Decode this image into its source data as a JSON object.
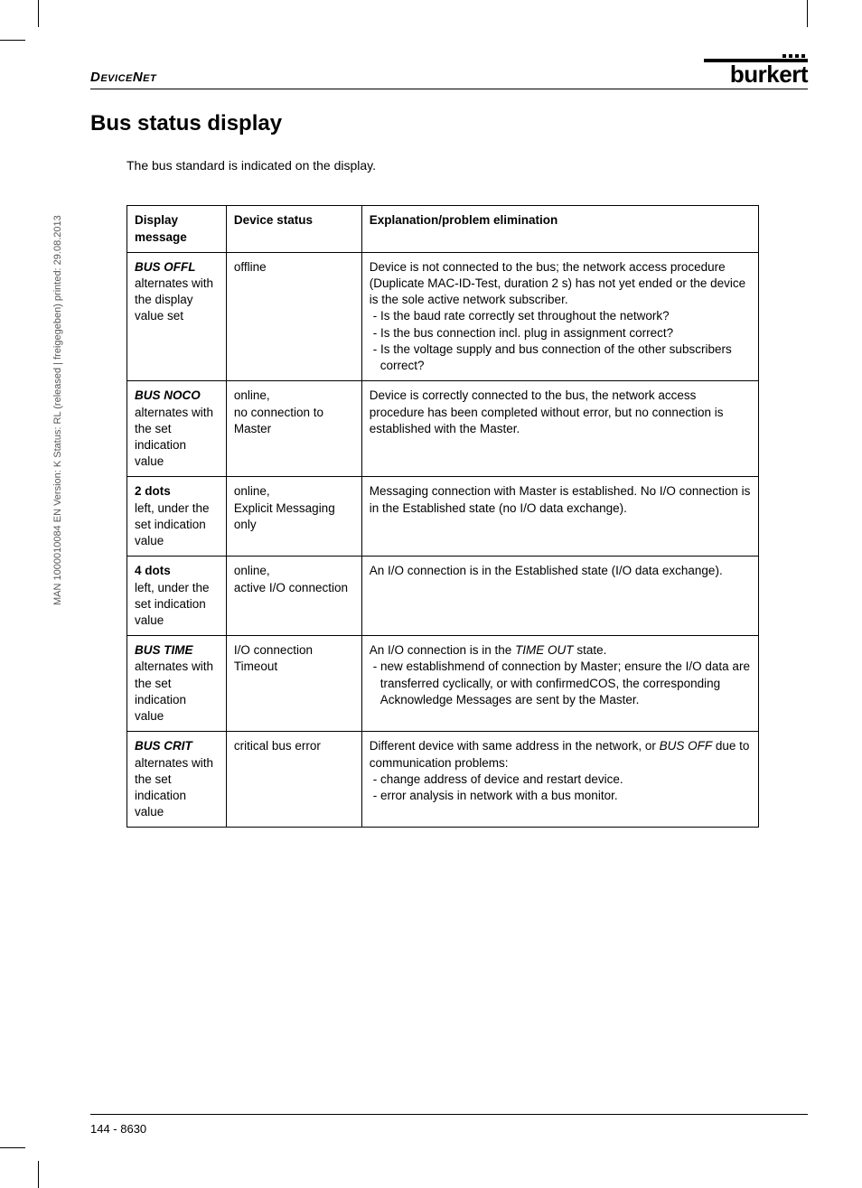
{
  "header": {
    "section": "DeviceNet",
    "logo_text": "burkert"
  },
  "title": "Bus status display",
  "intro": "The bus standard is indicated on the display.",
  "vertical_note": "MAN 1000010084 EN Version: K Status: RL (released | freigegeben) printed: 29.08.2013",
  "table": {
    "headers": {
      "c1": "Display message",
      "c2": "Device status",
      "c3": "Explanation/problem elimination"
    },
    "rows": [
      {
        "msg_strong": "BUS OFFL",
        "msg_rest": "alternates with the display value set",
        "msg_style": "bold-italic",
        "status": "offline",
        "exp_main": "Device is not connected to the bus; the network access procedure (Duplicate MAC-ID-Test, duration 2 s) has not yet ended or the device is the sole active network subscriber.",
        "exp_bullets": [
          "- Is the baud rate correctly set throughout the network?",
          "- Is the bus connection incl. plug in assignment correct?",
          "- Is the voltage supply and bus connection of the other subscribers correct?"
        ]
      },
      {
        "msg_strong": "BUS NOCO",
        "msg_rest": "alternates with the set indication value",
        "msg_style": "bold-italic",
        "status": "online,\nno connection to Master",
        "exp_main": "Device is correctly connected to the bus, the network access procedure has been completed without error, but no connection is established with the Master."
      },
      {
        "msg_strong": "2 dots",
        "msg_rest": "left, under the set indication value",
        "msg_style": "bold",
        "status": "online,\nExplicit Messaging only",
        "exp_main": "Messaging connection with Master is established. No I/O connection is in the Established state (no I/O data exchange)."
      },
      {
        "msg_strong": "4 dots",
        "msg_rest": "left, under the set indication value",
        "msg_style": "bold",
        "status": "online,\nactive I/O connection",
        "exp_main": "An I/O connection is in the Established state (I/O data exchange)."
      },
      {
        "msg_strong": "BUS TIME",
        "msg_rest": "alternates with the set indication value",
        "msg_style": "bold-italic",
        "status": "I/O connection Timeout",
        "exp_pre": "An I/O connection is in the ",
        "exp_em": "TIME OUT",
        "exp_post": " state.",
        "exp_bullets": [
          "- new establishmend of connection by Master; ensure the I/O data are transferred cyclically, or with confirmedCOS, the corresponding Acknowledge Messages are sent by the Master."
        ]
      },
      {
        "msg_strong": "BUS CRIT",
        "msg_rest": "alternates with the set indication value",
        "msg_style": "bold-italic",
        "status": "critical bus error",
        "exp_pre": "Different device with same address in the network, or ",
        "exp_em": "BUS OFF",
        "exp_post": " due to communication problems:",
        "exp_bullets": [
          "-  change address of device and restart device.",
          "-  error analysis in network with a bus monitor."
        ]
      }
    ]
  },
  "footer": "144  -  8630"
}
